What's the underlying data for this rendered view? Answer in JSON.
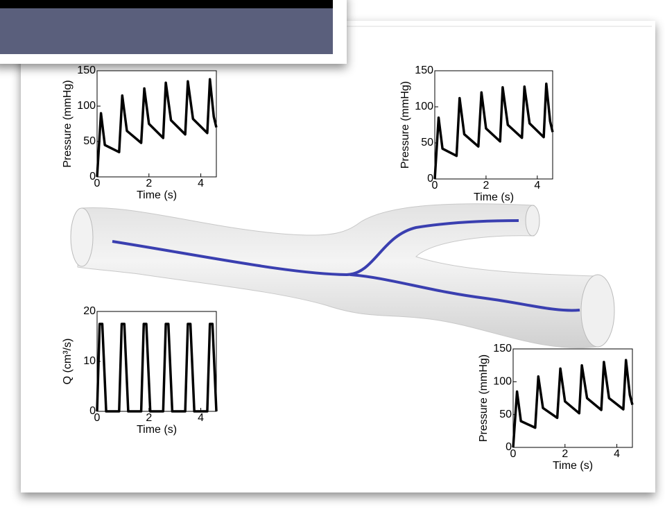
{
  "chart_data": [
    {
      "type": "line",
      "xlabel": "Time (s)",
      "ylabel": "Pressure (mmHg)",
      "x": [
        0,
        0.15,
        0.3,
        0.85,
        0.97,
        1.15,
        1.7,
        1.82,
        2.0,
        2.55,
        2.65,
        2.85,
        3.4,
        3.5,
        3.7,
        4.25,
        4.35,
        4.5,
        4.6
      ],
      "values": [
        0,
        90,
        45,
        35,
        115,
        65,
        48,
        125,
        75,
        55,
        133,
        80,
        60,
        135,
        82,
        62,
        138,
        85,
        70
      ],
      "color": "#000000",
      "xlim": [
        0,
        4.6
      ],
      "xticks": [
        0,
        2,
        4
      ],
      "ylim": [
        0,
        150
      ],
      "yticks": [
        0,
        50,
        100,
        150
      ]
    },
    {
      "type": "line",
      "xlabel": "Time (s)",
      "ylabel": "Pressure (mmHg)",
      "x": [
        0,
        0.15,
        0.3,
        0.85,
        0.97,
        1.15,
        1.7,
        1.82,
        2.0,
        2.55,
        2.65,
        2.85,
        3.4,
        3.5,
        3.7,
        4.25,
        4.35,
        4.5,
        4.6
      ],
      "values": [
        0,
        85,
        42,
        32,
        112,
        62,
        45,
        120,
        70,
        52,
        127,
        75,
        57,
        128,
        77,
        58,
        132,
        80,
        65
      ],
      "color": "#000000",
      "xlim": [
        0,
        4.6
      ],
      "xticks": [
        0,
        2,
        4
      ],
      "ylim": [
        0,
        150
      ],
      "yticks": [
        0,
        50,
        100,
        150
      ]
    },
    {
      "type": "line",
      "xlabel": "Time (s)",
      "ylabel": "Q (cm³/s)",
      "x": [
        0,
        0.1,
        0.2,
        0.35,
        0.85,
        0.95,
        1.05,
        1.2,
        1.7,
        1.8,
        1.9,
        2.05,
        2.55,
        2.65,
        2.75,
        2.9,
        3.4,
        3.5,
        3.6,
        3.75,
        4.25,
        4.35,
        4.45,
        4.6
      ],
      "values": [
        0,
        17.5,
        17.5,
        0,
        0,
        17.5,
        17.5,
        0,
        0,
        17.5,
        17.5,
        0,
        0,
        17.5,
        17.5,
        0,
        0,
        17.5,
        17.5,
        0,
        0,
        17.5,
        17.5,
        0
      ],
      "color": "#000000",
      "xlim": [
        0,
        4.6
      ],
      "xticks": [
        0,
        2,
        4
      ],
      "ylim": [
        0,
        20
      ],
      "yticks": [
        0,
        10,
        20
      ]
    },
    {
      "type": "line",
      "xlabel": "Time (s)",
      "ylabel": "Pressure (mmHg)",
      "x": [
        0,
        0.15,
        0.3,
        0.85,
        0.97,
        1.15,
        1.7,
        1.82,
        2.0,
        2.55,
        2.65,
        2.85,
        3.4,
        3.5,
        3.7,
        4.25,
        4.35,
        4.5,
        4.6
      ],
      "values": [
        0,
        85,
        40,
        30,
        108,
        60,
        45,
        120,
        70,
        52,
        125,
        75,
        57,
        130,
        75,
        58,
        133,
        80,
        65
      ],
      "color": "#000000",
      "xlim": [
        0,
        4.6
      ],
      "xticks": [
        0,
        2,
        4
      ],
      "ylim": [
        0,
        150
      ],
      "yticks": [
        0,
        50,
        100,
        150
      ]
    }
  ]
}
